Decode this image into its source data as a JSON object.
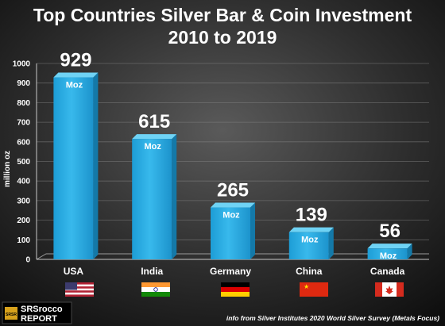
{
  "chart_data": {
    "type": "bar",
    "title": "Top Countries Silver Bar & Coin Investment",
    "subtitle": "2010 to 2019",
    "ylabel": "million oz",
    "xlabel": "",
    "ylim": [
      0,
      1000
    ],
    "yticks": [
      "0",
      "100",
      "200",
      "300",
      "400",
      "500",
      "600",
      "700",
      "800",
      "900",
      "1000"
    ],
    "grid": true,
    "categories": [
      "USA",
      "India",
      "Germany",
      "China",
      "Canada"
    ],
    "values": [
      929,
      615,
      265,
      139,
      56
    ],
    "value_labels": [
      "929",
      "615",
      "265",
      "139",
      "56"
    ],
    "unit_label": "Moz",
    "flags": [
      "us-flag-icon",
      "india-flag-icon",
      "germany-flag-icon",
      "china-flag-icon",
      "canada-flag-icon"
    ],
    "source_note": "info from Silver Institutes 2020 World Silver Survey (Metals Focus)",
    "colors": {
      "bar": "#2aaee3",
      "bar_top": "#6fd3f5",
      "bar_side": "#1479a8",
      "background": "#1c1c1c"
    }
  },
  "logo": {
    "top": "SRSrocco",
    "bottom": "REPORT",
    "badge": "SRSR"
  }
}
